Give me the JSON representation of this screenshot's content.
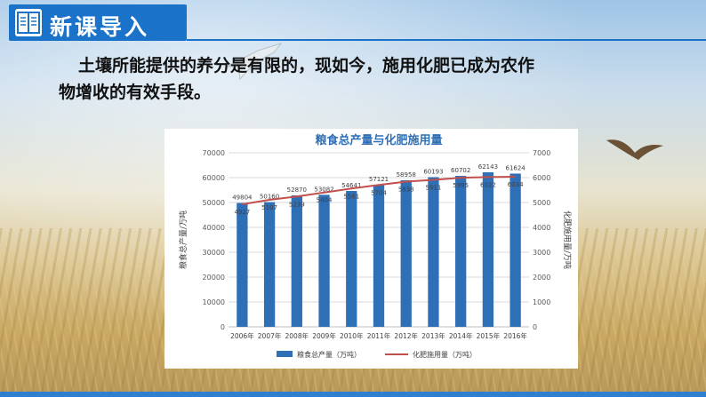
{
  "header": {
    "title": "新课导入",
    "icon": "book-icon"
  },
  "intro": {
    "line1": "土壤所能提供的养分是有限的，现如今，施用化肥已成为农作",
    "line2": "物增收的有效手段。"
  },
  "chart_data": {
    "type": "bar+line",
    "title": "粮食总产量与化肥施用量",
    "categories": [
      "2006年",
      "2007年",
      "2008年",
      "2009年",
      "2010年",
      "2011年",
      "2012年",
      "2013年",
      "2014年",
      "2015年",
      "2016年"
    ],
    "series": [
      {
        "name": "粮食总产量（万吨）",
        "type": "bar",
        "axis": "left",
        "color": "#2e6fb6",
        "values": [
          49804,
          50160,
          52870,
          53082,
          54641,
          57121,
          58958,
          60193,
          60702,
          62143,
          61624
        ],
        "labels": [
          "49804",
          "50160",
          "52870",
          "53082",
          "54641",
          "57121",
          "58958",
          "60193",
          "60702",
          "62143",
          "61624"
        ]
      },
      {
        "name": "化肥施用量（万吨）",
        "type": "line",
        "axis": "right",
        "color": "#c0504d",
        "values": [
          4927,
          5107,
          5239,
          5404,
          5561,
          5704,
          5838,
          5911,
          5995,
          6022,
          6034
        ],
        "labels": [
          "4927",
          "5107",
          "5239",
          "5404",
          "5561",
          "5704",
          "5838",
          "5911",
          "5995",
          "6022",
          "6034"
        ]
      }
    ],
    "ylabel_left": "粮食总产量/万吨",
    "ylabel_right": "化肥施用量/万吨",
    "ylim_left": [
      0,
      70000
    ],
    "ylim_right": [
      0,
      7000
    ],
    "yticks_left": [
      "0",
      "10000",
      "20000",
      "30000",
      "40000",
      "50000",
      "60000",
      "70000"
    ],
    "yticks_right": [
      "0",
      "1000",
      "2000",
      "3000",
      "4000",
      "5000",
      "6000",
      "7000"
    ],
    "legend": [
      "粮食总产量（万吨）",
      "化肥施用量（万吨）"
    ],
    "legend_position": "bottom",
    "grid": true
  }
}
